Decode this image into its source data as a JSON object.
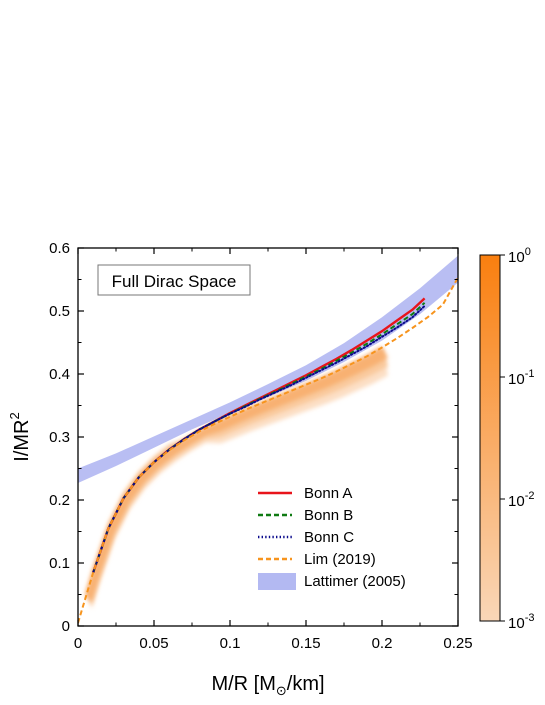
{
  "chart_data": {
    "type": "line",
    "annotation": "Full Dirac Space",
    "xlabel": {
      "main": "M/R [M",
      "sub": "⊙",
      "tail": "/km]"
    },
    "ylabel": {
      "main": "I/MR",
      "sup": "2"
    },
    "xlim": [
      0,
      0.25
    ],
    "ylim": [
      0,
      0.6
    ],
    "xticks": [
      {
        "v": 0,
        "label": "0"
      },
      {
        "v": 0.05,
        "label": "0.05"
      },
      {
        "v": 0.1,
        "label": "0.1"
      },
      {
        "v": 0.15,
        "label": "0.15"
      },
      {
        "v": 0.2,
        "label": "0.2"
      },
      {
        "v": 0.25,
        "label": "0.25"
      }
    ],
    "yticks": [
      {
        "v": 0,
        "label": "0"
      },
      {
        "v": 0.1,
        "label": "0.1"
      },
      {
        "v": 0.2,
        "label": "0.2"
      },
      {
        "v": 0.3,
        "label": "0.3"
      },
      {
        "v": 0.4,
        "label": "0.4"
      },
      {
        "v": 0.5,
        "label": "0.5"
      },
      {
        "v": 0.6,
        "label": "0.6"
      }
    ],
    "grid": false,
    "legend_position": "bottom-right",
    "series": [
      {
        "name": "Bonn A",
        "color": "#e8141b",
        "style": "solid",
        "x": [
          0.01,
          0.02,
          0.03,
          0.04,
          0.05,
          0.06,
          0.07,
          0.08,
          0.09,
          0.1,
          0.11,
          0.12,
          0.13,
          0.14,
          0.15,
          0.16,
          0.17,
          0.18,
          0.19,
          0.2,
          0.21,
          0.22,
          0.228
        ],
        "y": [
          0.085,
          0.155,
          0.203,
          0.236,
          0.26,
          0.28,
          0.297,
          0.312,
          0.325,
          0.338,
          0.35,
          0.362,
          0.374,
          0.386,
          0.398,
          0.411,
          0.424,
          0.438,
          0.453,
          0.468,
          0.485,
          0.502,
          0.52
        ]
      },
      {
        "name": "Bonn B",
        "color": "#0f7a12",
        "style": "dashed",
        "x": [
          0.01,
          0.02,
          0.03,
          0.04,
          0.05,
          0.06,
          0.07,
          0.08,
          0.09,
          0.1,
          0.11,
          0.12,
          0.13,
          0.14,
          0.15,
          0.16,
          0.17,
          0.18,
          0.19,
          0.2,
          0.21,
          0.22,
          0.228
        ],
        "y": [
          0.085,
          0.155,
          0.203,
          0.236,
          0.26,
          0.28,
          0.297,
          0.312,
          0.325,
          0.337,
          0.349,
          0.361,
          0.372,
          0.384,
          0.396,
          0.408,
          0.421,
          0.434,
          0.448,
          0.463,
          0.479,
          0.495,
          0.513
        ]
      },
      {
        "name": "Bonn C",
        "color": "#0a0a8c",
        "style": "dotted",
        "x": [
          0.01,
          0.02,
          0.03,
          0.04,
          0.05,
          0.06,
          0.07,
          0.08,
          0.09,
          0.1,
          0.11,
          0.12,
          0.13,
          0.14,
          0.15,
          0.16,
          0.17,
          0.18,
          0.19,
          0.2,
          0.21,
          0.22,
          0.228
        ],
        "y": [
          0.085,
          0.155,
          0.203,
          0.236,
          0.26,
          0.28,
          0.297,
          0.312,
          0.325,
          0.337,
          0.348,
          0.36,
          0.371,
          0.382,
          0.394,
          0.406,
          0.418,
          0.431,
          0.444,
          0.459,
          0.474,
          0.49,
          0.508
        ]
      },
      {
        "name": "Lim (2019)",
        "color": "#f7941d",
        "style": "dashed",
        "x": [
          0.0,
          0.005,
          0.01,
          0.02,
          0.03,
          0.04,
          0.05,
          0.06,
          0.07,
          0.08,
          0.09,
          0.1,
          0.11,
          0.12,
          0.13,
          0.14,
          0.15,
          0.16,
          0.17,
          0.18,
          0.19,
          0.2,
          0.21,
          0.22,
          0.23,
          0.24,
          0.25
        ],
        "y": [
          0.005,
          0.045,
          0.085,
          0.155,
          0.203,
          0.236,
          0.26,
          0.279,
          0.295,
          0.309,
          0.321,
          0.332,
          0.343,
          0.353,
          0.363,
          0.373,
          0.383,
          0.393,
          0.404,
          0.416,
          0.428,
          0.442,
          0.457,
          0.473,
          0.49,
          0.51,
          0.553
        ]
      }
    ],
    "bands": [
      {
        "name": "Lattimer (2005)",
        "color": "#b3b9f2",
        "x": [
          0.0,
          0.025,
          0.05,
          0.075,
          0.1,
          0.125,
          0.15,
          0.175,
          0.2,
          0.225,
          0.25
        ],
        "lower": [
          0.227,
          0.254,
          0.283,
          0.312,
          0.338,
          0.363,
          0.389,
          0.419,
          0.453,
          0.495,
          0.545
        ],
        "upper": [
          0.25,
          0.274,
          0.301,
          0.328,
          0.355,
          0.384,
          0.414,
          0.449,
          0.49,
          0.536,
          0.588
        ]
      }
    ],
    "colorbar": {
      "scale": "log",
      "range": [
        0.001,
        1
      ],
      "colors": [
        "#fad7b8",
        "#f97f0f"
      ],
      "ticks": [
        {
          "v": 1,
          "base": "10",
          "exp": "0"
        },
        {
          "v": 0.1,
          "base": "10",
          "exp": "-1"
        },
        {
          "v": 0.01,
          "base": "10",
          "exp": "-2"
        },
        {
          "v": 0.001,
          "base": "10",
          "exp": "-3"
        }
      ]
    }
  }
}
